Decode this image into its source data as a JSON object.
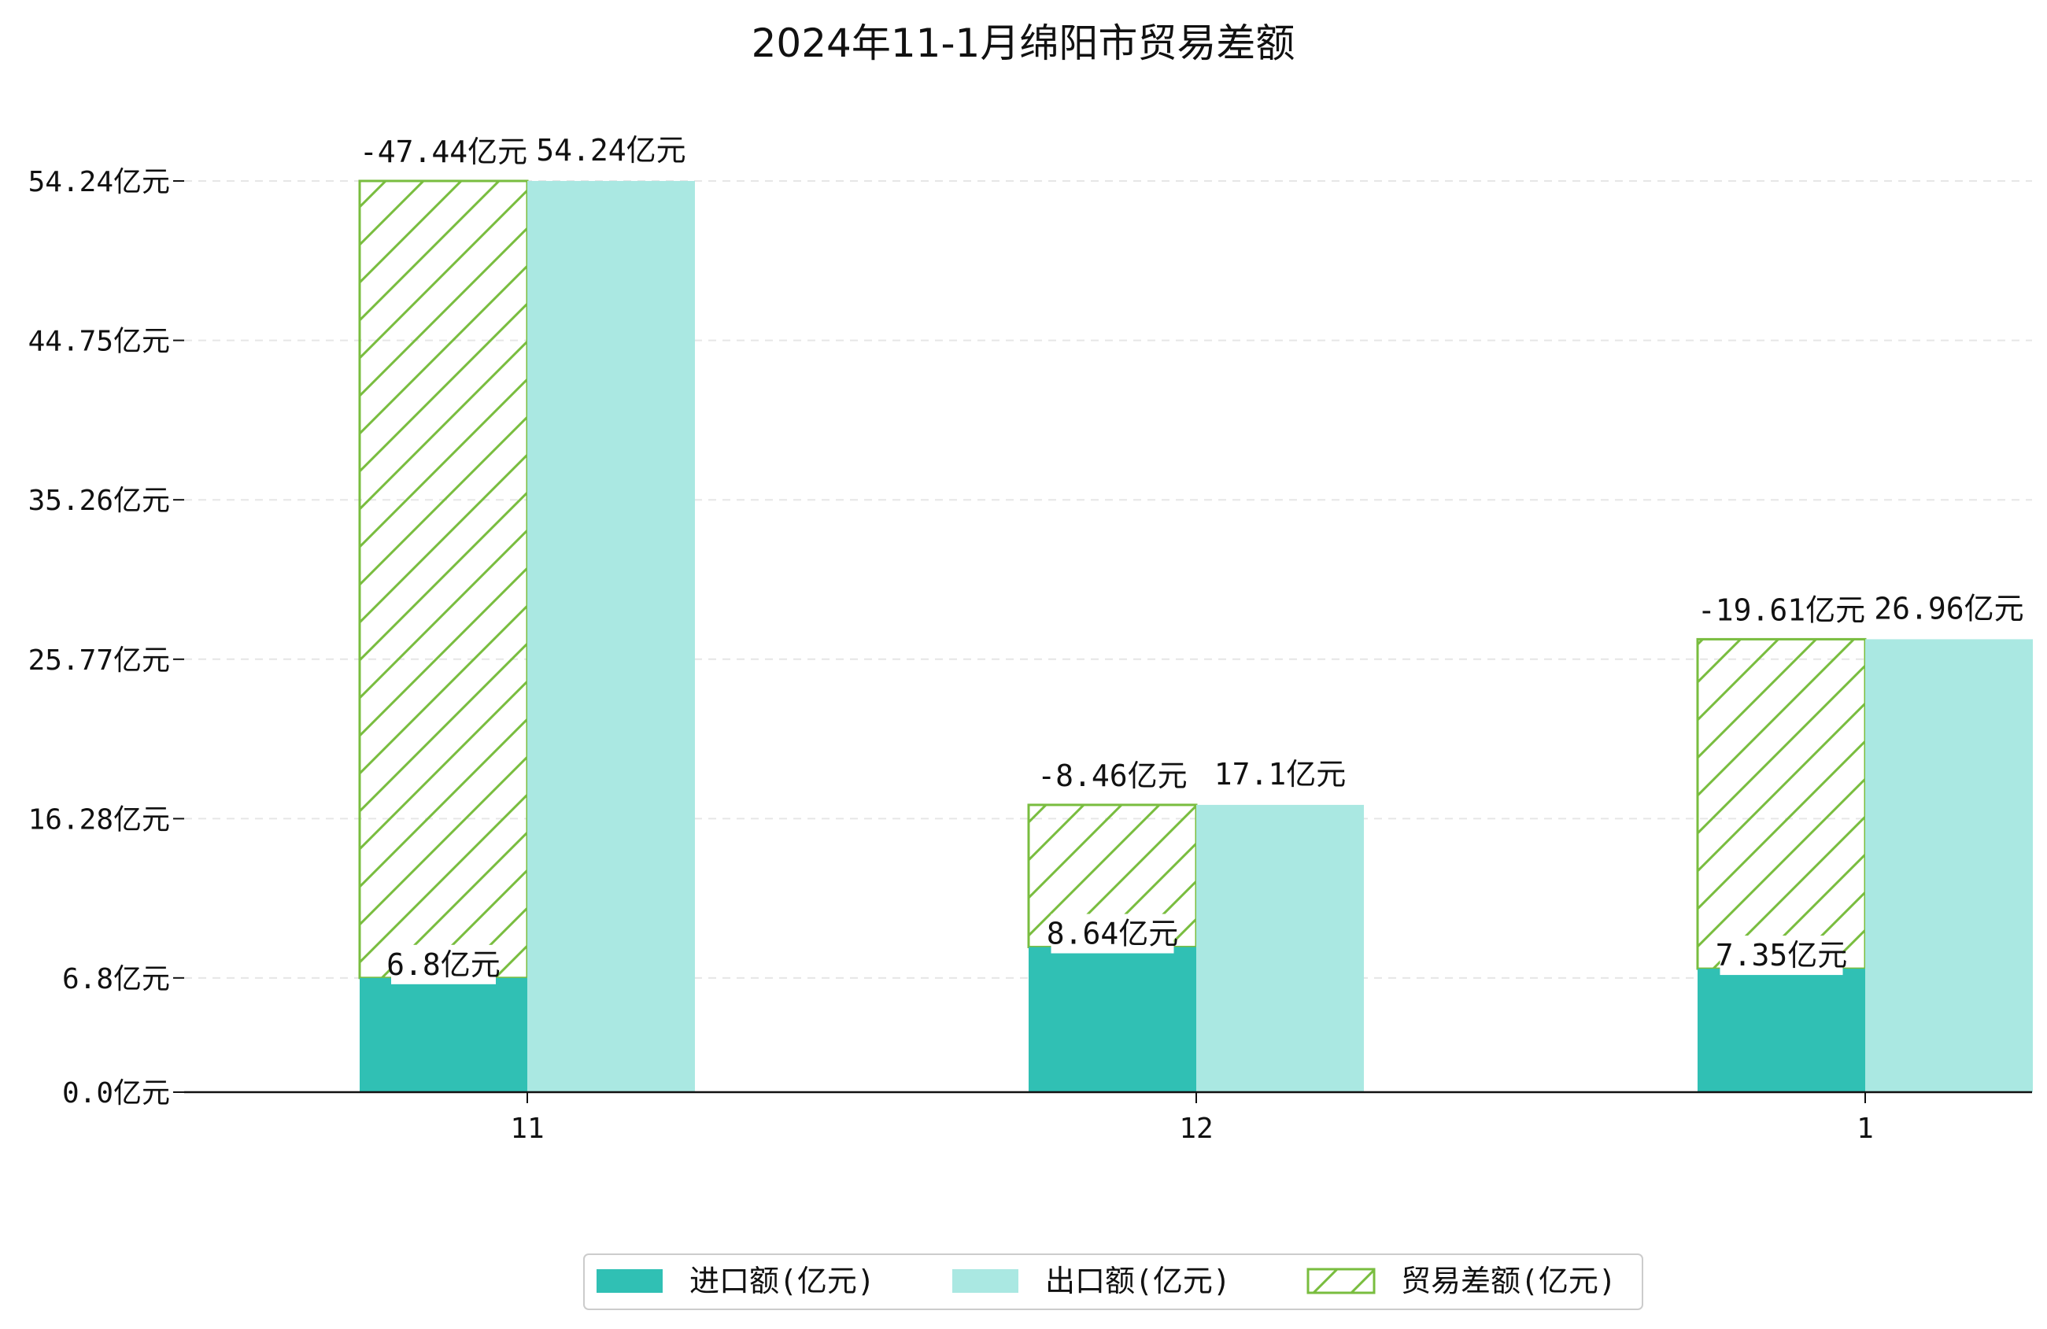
{
  "chart_data": {
    "type": "bar",
    "title": "2024年11-1月绵阳市贸易差额",
    "categories": [
      "11",
      "12",
      "1"
    ],
    "series": [
      {
        "name": "进口额(亿元)",
        "values": [
          6.8,
          8.64,
          7.35
        ],
        "labels": [
          "6.8亿元",
          "8.64亿元",
          "7.35亿元"
        ],
        "color": "#30c0b4"
      },
      {
        "name": "出口额(亿元)",
        "values": [
          54.24,
          17.1,
          26.96
        ],
        "labels": [
          "54.24亿元",
          "17.1亿元",
          "26.96亿元"
        ],
        "color": "#aae8e2"
      },
      {
        "name": "贸易差额(亿元)",
        "values": [
          -47.44,
          -8.46,
          -19.61
        ],
        "labels": [
          "-47.44亿元",
          "-8.46亿元",
          "-19.61亿元"
        ],
        "color": "#79bd3f",
        "style": "hatched, stacked on 进口额"
      }
    ],
    "yticks": [
      "0.0亿元",
      "6.8亿元",
      "16.28亿元",
      "25.77亿元",
      "35.26亿元",
      "44.75亿元",
      "54.24亿元"
    ],
    "ytick_values": [
      0,
      6.8,
      16.28,
      25.77,
      35.26,
      44.75,
      54.24
    ],
    "ylim": [
      0,
      56.5
    ],
    "grid": "horizontal dashed",
    "legend_position": "bottom-center"
  }
}
